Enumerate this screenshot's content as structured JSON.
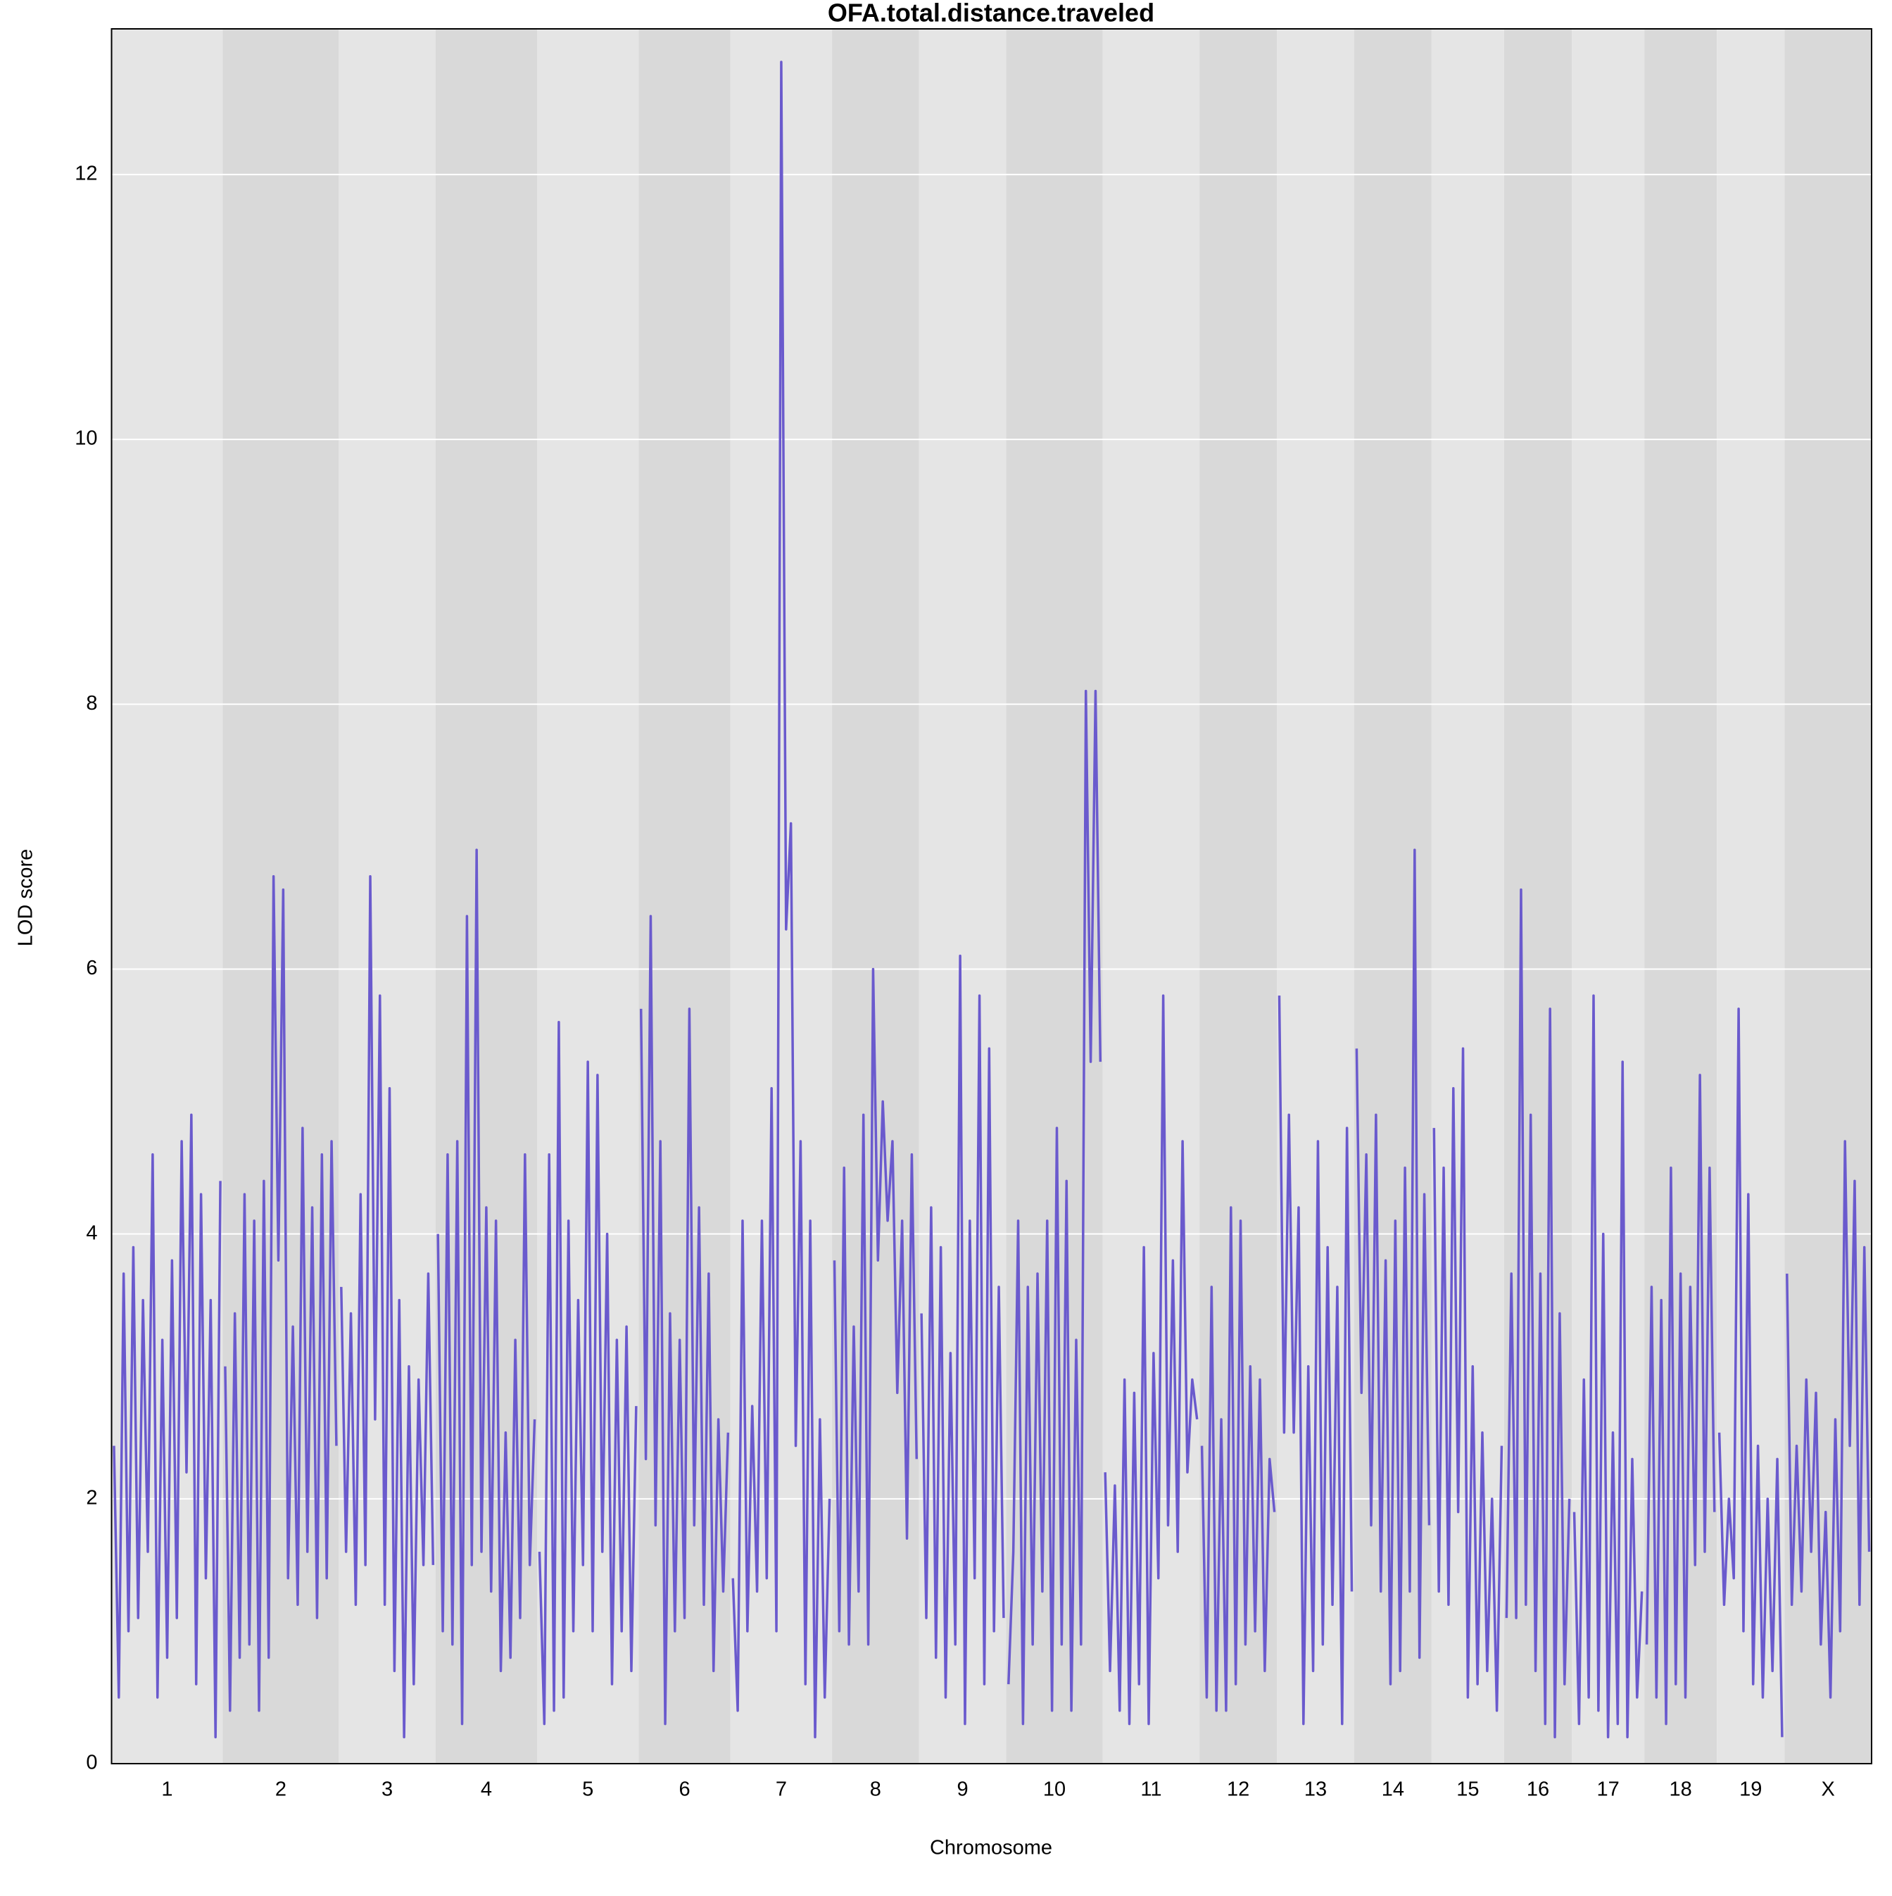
{
  "chart_data": {
    "type": "line",
    "title": "OFA.total.distance.traveled",
    "x_label": "Chromosome",
    "y_label": "LOD score",
    "color": "#6a5acd",
    "band_colors": [
      "#e5e5e5",
      "#d9d9d9"
    ],
    "grid": true,
    "ylim": [
      0,
      13.1
    ],
    "yticks": [
      0,
      2,
      4,
      6,
      8,
      10,
      12
    ],
    "categories": [
      "1",
      "2",
      "3",
      "4",
      "5",
      "6",
      "7",
      "8",
      "9",
      "10",
      "11",
      "12",
      "13",
      "14",
      "15",
      "16",
      "17",
      "18",
      "19",
      "X"
    ],
    "values": [
      [
        2.4,
        0.5,
        3.7,
        1.0,
        3.9,
        1.1,
        3.5,
        1.6,
        4.6,
        0.5,
        3.2,
        0.8,
        3.8,
        1.1,
        4.7,
        2.2,
        4.9,
        0.6,
        4.3,
        1.4,
        3.5,
        0.2,
        4.4
      ],
      [
        3.0,
        0.4,
        3.4,
        0.8,
        4.3,
        0.9,
        4.1,
        0.4,
        4.4,
        0.8,
        6.7,
        3.8,
        6.6,
        1.4,
        3.3,
        1.2,
        4.8,
        1.6,
        4.2,
        1.1,
        4.6,
        1.4,
        4.7,
        2.4
      ],
      [
        3.6,
        1.6,
        3.4,
        1.2,
        4.3,
        1.5,
        6.7,
        2.6,
        5.8,
        1.2,
        5.1,
        0.7,
        3.5,
        0.2,
        3.0,
        0.6,
        2.9,
        1.5,
        3.7,
        1.5
      ],
      [
        4.0,
        1.0,
        4.6,
        0.9,
        4.7,
        0.3,
        6.4,
        1.5,
        6.9,
        1.6,
        4.2,
        1.3,
        4.1,
        0.7,
        2.5,
        0.8,
        3.2,
        1.1,
        4.6,
        1.5,
        2.6
      ],
      [
        1.6,
        0.3,
        4.6,
        0.4,
        5.6,
        0.5,
        4.1,
        1.0,
        3.5,
        1.5,
        5.3,
        1.0,
        5.2,
        1.6,
        4.0,
        0.6,
        3.2,
        1.0,
        3.3,
        0.7,
        2.7
      ],
      [
        5.7,
        2.3,
        6.4,
        1.8,
        4.7,
        0.3,
        3.4,
        1.0,
        3.2,
        1.1,
        5.7,
        1.8,
        4.2,
        1.2,
        3.7,
        0.7,
        2.6,
        1.3,
        2.5
      ],
      [
        1.4,
        0.4,
        4.1,
        1.0,
        2.7,
        1.3,
        4.1,
        1.4,
        5.1,
        1.0,
        12.85,
        6.3,
        7.1,
        2.4,
        4.7,
        0.6,
        4.1,
        0.2,
        2.6,
        0.5,
        2.0
      ],
      [
        3.8,
        1.0,
        4.5,
        0.9,
        3.3,
        1.3,
        4.9,
        0.9,
        6.0,
        3.8,
        5.0,
        4.1,
        4.7,
        2.8,
        4.1,
        1.7,
        4.6,
        2.3
      ],
      [
        3.4,
        1.1,
        4.2,
        0.8,
        3.9,
        0.5,
        3.1,
        0.9,
        6.1,
        0.3,
        4.1,
        1.4,
        5.8,
        0.6,
        5.4,
        1.0,
        3.6,
        1.1
      ],
      [
        0.6,
        1.6,
        4.1,
        0.3,
        3.6,
        0.9,
        3.7,
        1.3,
        4.1,
        0.4,
        4.8,
        0.9,
        4.4,
        0.4,
        3.2,
        0.9,
        8.1,
        5.3,
        8.1,
        5.3
      ],
      [
        2.2,
        0.7,
        2.1,
        0.4,
        2.9,
        0.3,
        2.8,
        0.6,
        3.9,
        0.3,
        3.1,
        1.4,
        5.8,
        1.8,
        3.8,
        1.6,
        4.7,
        2.2,
        2.9,
        2.6
      ],
      [
        2.4,
        0.5,
        3.6,
        0.4,
        2.6,
        0.4,
        4.2,
        0.6,
        4.1,
        0.9,
        3.0,
        1.0,
        2.9,
        0.7,
        2.3,
        1.9
      ],
      [
        5.8,
        2.5,
        4.9,
        2.5,
        4.2,
        0.3,
        3.0,
        0.7,
        4.7,
        0.9,
        3.9,
        1.2,
        3.6,
        0.3,
        4.8,
        1.3
      ],
      [
        5.4,
        2.8,
        4.6,
        1.8,
        4.9,
        1.3,
        3.8,
        0.6,
        4.1,
        0.7,
        4.5,
        1.3,
        6.9,
        0.8,
        4.3,
        1.8
      ],
      [
        4.8,
        1.3,
        4.5,
        1.2,
        5.1,
        1.9,
        5.4,
        0.5,
        3.0,
        0.6,
        2.5,
        0.7,
        2.0,
        0.4,
        2.4
      ],
      [
        1.1,
        3.7,
        1.1,
        6.6,
        1.2,
        4.9,
        0.7,
        3.7,
        0.3,
        5.7,
        0.2,
        3.4,
        0.6,
        2.0
      ],
      [
        1.9,
        0.3,
        2.9,
        0.5,
        5.8,
        0.4,
        4.0,
        0.2,
        2.5,
        0.3,
        5.3,
        0.2,
        2.3,
        0.5,
        1.3
      ],
      [
        0.9,
        3.6,
        0.5,
        3.5,
        0.3,
        4.5,
        0.6,
        3.7,
        0.5,
        3.6,
        1.5,
        5.2,
        1.6,
        4.5,
        1.9
      ],
      [
        2.5,
        1.2,
        2.0,
        1.4,
        5.7,
        1.0,
        4.3,
        0.6,
        2.4,
        0.5,
        2.0,
        0.7,
        2.3,
        0.2
      ],
      [
        3.7,
        1.2,
        2.4,
        1.3,
        2.9,
        1.6,
        2.8,
        0.9,
        1.9,
        0.5,
        2.6,
        1.0,
        4.7,
        2.4,
        4.4,
        1.2,
        3.9,
        1.6
      ]
    ]
  }
}
